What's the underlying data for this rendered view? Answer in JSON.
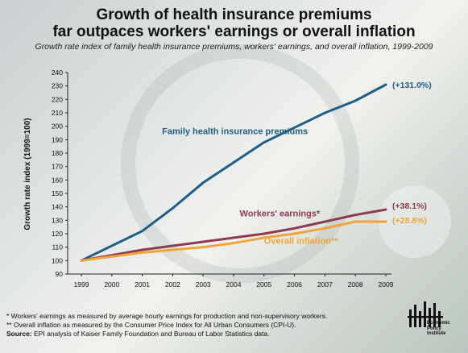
{
  "header": {
    "title_line1": "Growth of health insurance premiums",
    "title_line2": "far outpaces workers' earnings or overall inflation",
    "subtitle": "Growth rate index of family health insurance premiums, workers' earnings, and overall inflation, 1999-2009"
  },
  "chart_data": {
    "type": "line",
    "title": "Growth of health insurance premiums far outpaces workers' earnings or overall inflation",
    "subtitle": "Growth rate index of family health insurance premiums, workers' earnings, and overall inflation, 1999-2009",
    "xlabel": "",
    "ylabel": "Growth rate index (1999=100)",
    "x": [
      1999,
      2000,
      2001,
      2002,
      2003,
      2004,
      2005,
      2006,
      2007,
      2008,
      2009
    ],
    "ylim": [
      90,
      240
    ],
    "yticks": [
      90,
      100,
      110,
      120,
      130,
      140,
      150,
      160,
      170,
      180,
      190,
      200,
      210,
      220,
      230,
      240
    ],
    "grid": false,
    "series": [
      {
        "name": "Family health insurance premiums",
        "color": "#1f5f87",
        "values": [
          100,
          111,
          122,
          139,
          158,
          173,
          188,
          199,
          210,
          219,
          231
        ],
        "end_label": "(+131.0%)"
      },
      {
        "name": "Workers' earnings*",
        "color": "#8e3b52",
        "values": [
          100,
          104,
          108,
          111,
          114,
          117,
          120,
          124,
          129,
          134,
          138
        ],
        "end_label": "(+38.1%)"
      },
      {
        "name": "Overall inflation**",
        "color": "#f0a43a",
        "values": [
          100,
          103,
          106,
          108,
          110,
          113,
          117,
          120,
          124,
          129,
          129
        ],
        "end_label": "(+28.8%)"
      }
    ]
  },
  "footnotes": {
    "note1": "* Workers' earnings as measured by average hourly earnings for production and non-supervisory workers.",
    "note2": "** Overall inflation as measured by the Consumer Price Index for All Urban Consumers (CPI-U).",
    "source_label": "Source:",
    "source_text": " EPI analysis of Kaiser Family Foundation and Bureau of Labor Statistics data."
  },
  "logo": {
    "line1": "Economic",
    "line2": "Policy",
    "line3": "Institute"
  }
}
